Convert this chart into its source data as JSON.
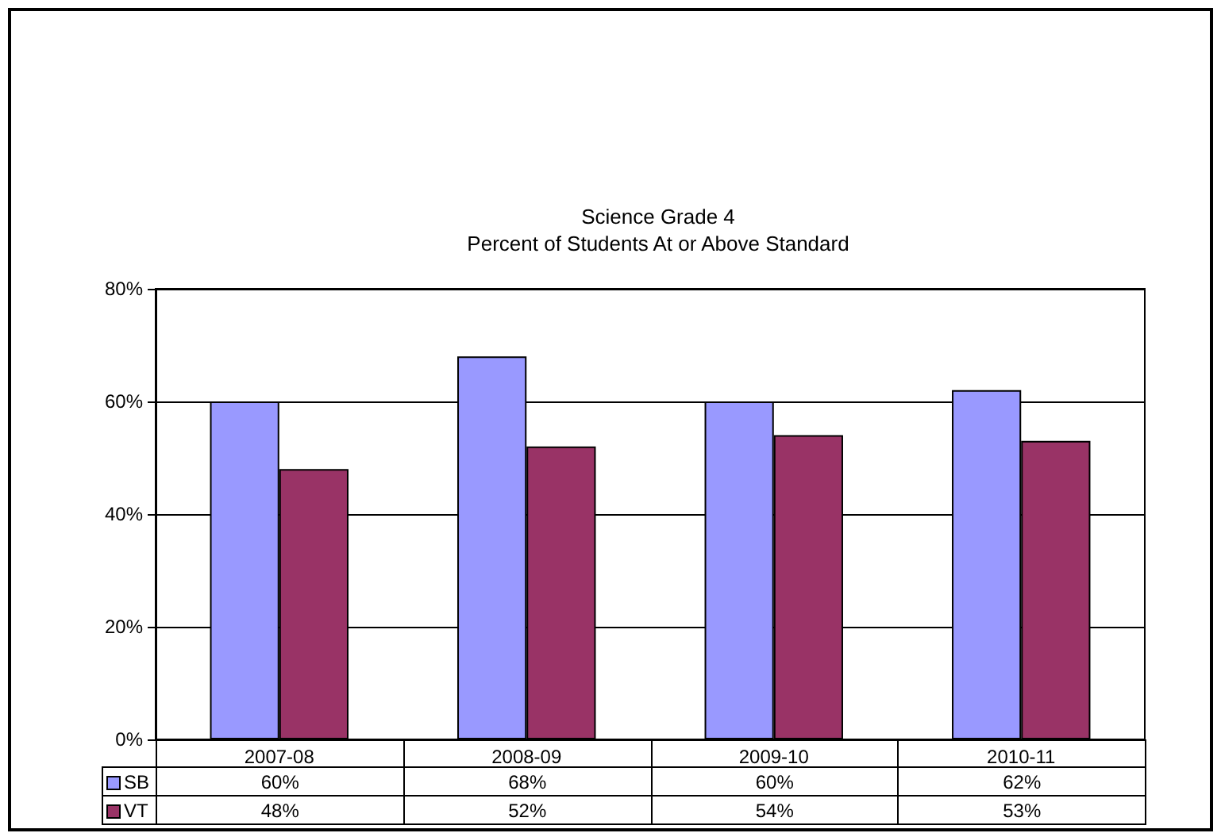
{
  "chart_data": {
    "type": "bar",
    "title": "Science Grade 4",
    "subtitle": "Percent of Students At or Above Standard",
    "categories": [
      "2007-08",
      "2008-09",
      "2009-10",
      "2010-11"
    ],
    "series": [
      {
        "name": "SB",
        "color": "#9999ff",
        "values": [
          60,
          68,
          60,
          62
        ],
        "value_labels": [
          "60%",
          "68%",
          "60%",
          "62%"
        ]
      },
      {
        "name": "VT",
        "color": "#993366",
        "values": [
          48,
          52,
          54,
          53
        ],
        "value_labels": [
          "48%",
          "52%",
          "54%",
          "53%"
        ]
      }
    ],
    "ylim": [
      0,
      80
    ],
    "yticks": [
      {
        "value": 0,
        "label": "0%"
      },
      {
        "value": 20,
        "label": "20%"
      },
      {
        "value": 40,
        "label": "40%"
      },
      {
        "value": 60,
        "label": "60%"
      },
      {
        "value": 80,
        "label": "80%"
      }
    ],
    "grid": "y",
    "legend": "bottom left"
  }
}
